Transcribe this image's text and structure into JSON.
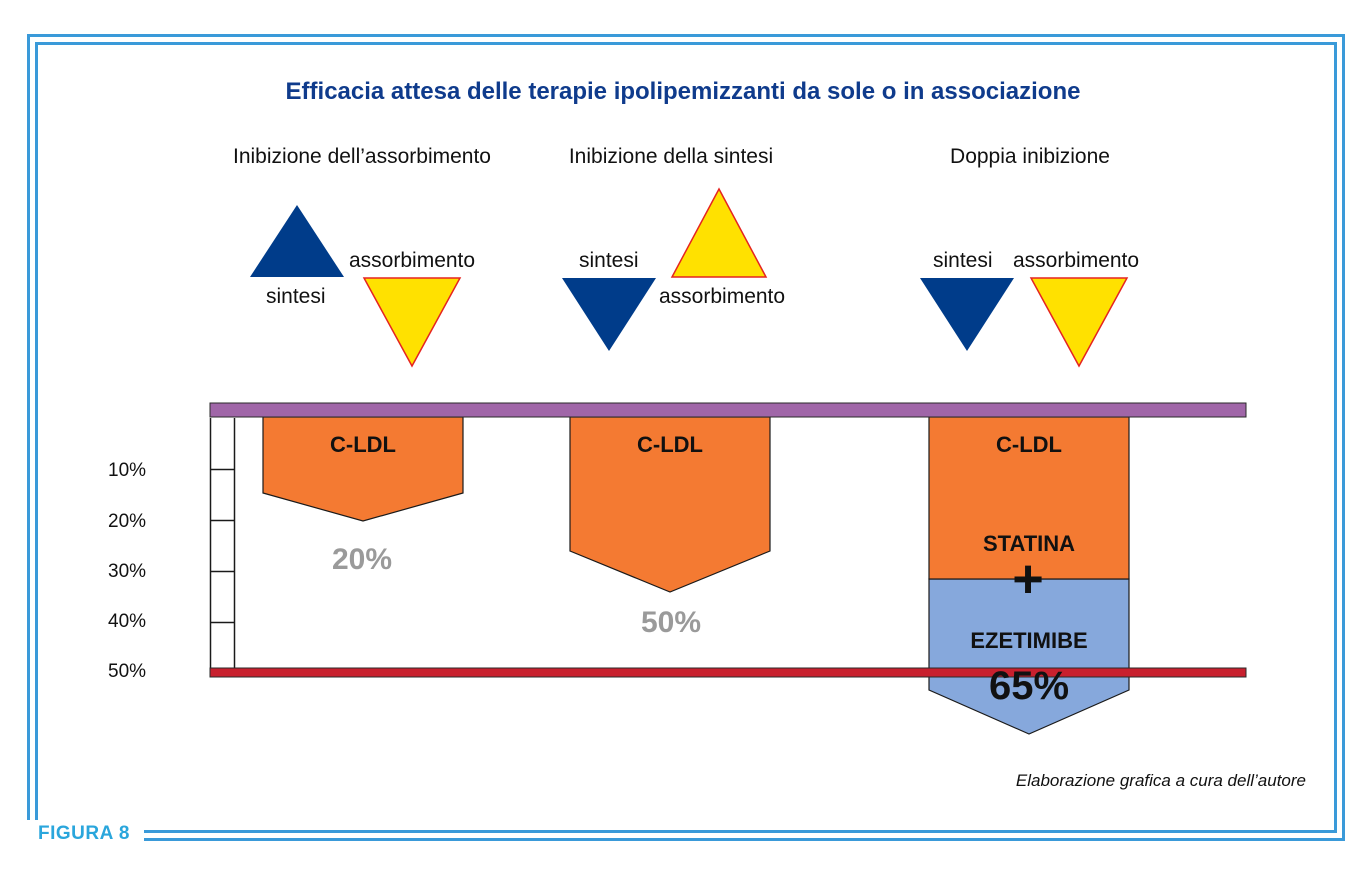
{
  "title": "Efficacia attesa delle terapie ipolipemizzanti da sole o in associazione",
  "figure_label": "FIGURA 8",
  "credit": "Elaborazione grafica a cura dell’autore",
  "sections": [
    {
      "heading": "Inibizione dell’assorbimento",
      "label_a": "sintesi",
      "label_b": "assorbimento",
      "ldl_label": "C-LDL",
      "reduction": "20%"
    },
    {
      "heading": "Inibizione della sintesi",
      "label_a": "sintesi",
      "label_b": "assorbimento",
      "ldl_label": "C-LDL",
      "reduction": "50%"
    },
    {
      "heading": "Doppia inibizione",
      "label_a": "sintesi",
      "label_b": "assorbimento",
      "ldl_label": "C-LDL",
      "reduction": "65%",
      "drug_1": "STATINA",
      "plus": "+",
      "drug_2": "EZETIMIBE"
    }
  ],
  "scale": [
    "10%",
    "20%",
    "30%",
    "40%",
    "50%"
  ],
  "colors": {
    "synthesis": "#003c8a",
    "absorption": "#ffe100",
    "absorption_border": "#e52421",
    "ldl": "#f47a32",
    "ezetimibe": "#86a8dc",
    "top_bar": "#a066a8",
    "bottom_bar": "#c8202e",
    "frame": "#3a9ad9"
  }
}
